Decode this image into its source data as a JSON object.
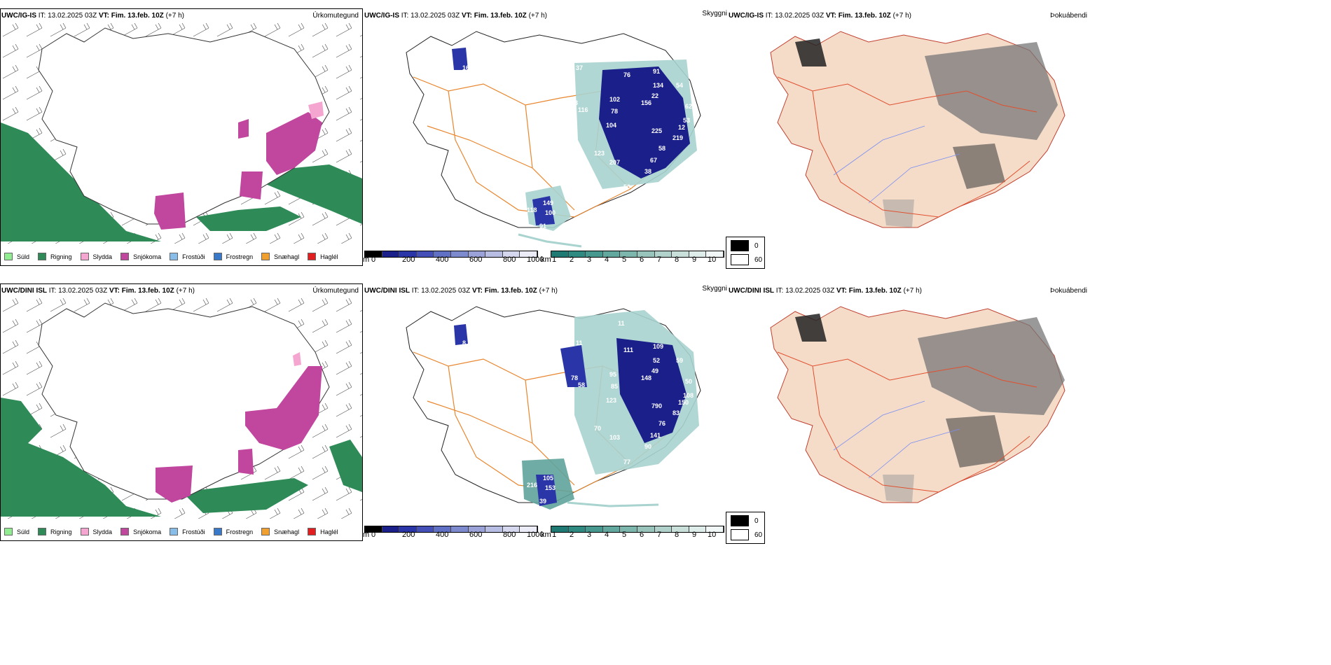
{
  "rows": [
    {
      "model_name": "UWC/IG-IS",
      "it_label": "IT:",
      "it_value": "13.02.2025 03Z",
      "vt_label": "VT:",
      "vt_value": "Fim. 13.feb. 10Z",
      "lead": "(+7 h)",
      "titles": {
        "precip": "Úrkomutegund",
        "ceiling": "Skyggni",
        "fog": "Þokuábendi"
      },
      "ceiling_labels": [
        "16",
        "93",
        "116",
        "76",
        "91",
        "102",
        "78",
        "156",
        "104",
        "22",
        "134",
        "54",
        "62",
        "53",
        "12",
        "219",
        "225",
        "58",
        "67",
        "123",
        "207",
        "38",
        "50",
        "149",
        "118",
        "100",
        "91",
        "37",
        "27"
      ]
    },
    {
      "model_name": "UWC/DINI ISL",
      "it_label": "IT:",
      "it_value": "13.02.2025 03Z",
      "vt_label": "VT:",
      "vt_value": "Fim. 13.feb. 10Z",
      "lead": "(+7 h)",
      "titles": {
        "precip": "Úrkomutegund",
        "ceiling": "Skyggni",
        "fog": "Þokuábendi"
      },
      "ceiling_labels": [
        "8",
        "78",
        "58",
        "111",
        "109",
        "95",
        "85",
        "148",
        "123",
        "49",
        "52",
        "59",
        "50",
        "108",
        "150",
        "83",
        "790",
        "76",
        "141",
        "70",
        "103",
        "90",
        "77",
        "105",
        "216",
        "153",
        "39",
        "11",
        "11"
      ]
    }
  ],
  "precip_legend": [
    {
      "label": "Súld",
      "color": "#90ee90"
    },
    {
      "label": "Rigning",
      "color": "#2e8b57"
    },
    {
      "label": "Slydda",
      "color": "#f4a6d0"
    },
    {
      "label": "Snjókoma",
      "color": "#c0469e"
    },
    {
      "label": "Frostúði",
      "color": "#87bde8"
    },
    {
      "label": "Frostregn",
      "color": "#3a78c8"
    },
    {
      "label": "Snæhagl",
      "color": "#f0a030"
    },
    {
      "label": "Haglél",
      "color": "#e02020"
    }
  ],
  "ceiling_colorbar": {
    "unit": "m",
    "ticks": [
      "0",
      "200",
      "400",
      "600",
      "800",
      "1000"
    ],
    "colors": [
      "#000000",
      "#1b1f8a",
      "#2a35a8",
      "#4450b8",
      "#6070c4",
      "#7e8ace",
      "#9aa2d8",
      "#b8bde3",
      "#d4d7ee",
      "#ebecf7"
    ]
  },
  "visibility_colorbar": {
    "unit": "km",
    "ticks": [
      "1",
      "2",
      "3",
      "4",
      "5",
      "6",
      "7",
      "8",
      "9",
      "10"
    ],
    "colors": [
      "#1e7a73",
      "#2f8a82",
      "#47998f",
      "#62a89e",
      "#7db6ad",
      "#98c4bc",
      "#b1d2cb",
      "#c8dfda",
      "#deecea",
      "#f1f7f6"
    ]
  },
  "fog_legend": [
    {
      "label": "0",
      "color": "#000000"
    },
    {
      "label": "60",
      "color": "#ffffff"
    }
  ]
}
